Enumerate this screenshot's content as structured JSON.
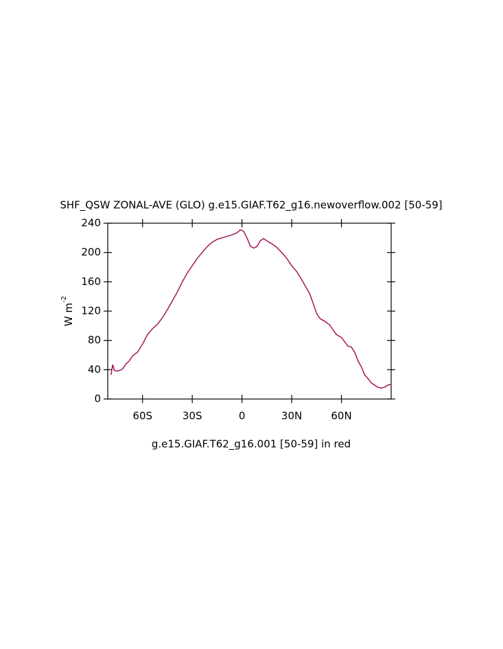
{
  "chart_data": {
    "type": "line",
    "title": "SHF_QSW ZONAL-AVE (GLO) g.e15.GIAF.T62_g16.newoverflow.002 [50-59]",
    "y_label": "W m",
    "y_label_exponent": "-2",
    "x_label": "g.e15.GIAF.T62_g16.001 [50-59] in red",
    "color": "#a3145c",
    "xlim": [
      -81,
      90
    ],
    "ylim": [
      0,
      240
    ],
    "xticks": [
      {
        "value": -60,
        "label": "60S"
      },
      {
        "value": -30,
        "label": "30S"
      },
      0,
      {
        "value": 30,
        "label": "30N"
      },
      {
        "value": 60,
        "label": "60N"
      }
    ],
    "yticks": [
      0,
      40,
      80,
      120,
      160,
      200,
      240
    ],
    "x": [
      -79,
      -78,
      -77,
      -75,
      -72,
      -70,
      -68,
      -66,
      -63,
      -60,
      -57,
      -54,
      -51,
      -48,
      -45,
      -42,
      -39,
      -36,
      -33,
      -30,
      -27,
      -24,
      -21,
      -18,
      -15,
      -12,
      -9,
      -6,
      -3,
      -1,
      1,
      3,
      5,
      7,
      9,
      11,
      13,
      15,
      18,
      21,
      24,
      27,
      30,
      33,
      36,
      39,
      41,
      43,
      45,
      47,
      50,
      53,
      55,
      57,
      60,
      62,
      64,
      66,
      68,
      70,
      72,
      74,
      76,
      78,
      80,
      82,
      84,
      86,
      88,
      90
    ],
    "values": [
      33,
      47,
      39,
      38,
      41,
      48,
      52,
      59,
      64,
      75,
      88,
      96,
      102,
      111,
      122,
      134,
      146,
      160,
      172,
      182,
      192,
      200,
      208,
      214,
      218,
      220,
      222,
      224,
      227,
      231,
      229,
      220,
      209,
      206,
      208,
      216,
      219,
      216,
      212,
      207,
      200,
      192,
      182,
      174,
      163,
      151,
      143,
      130,
      117,
      110,
      106,
      101,
      94,
      88,
      84,
      78,
      72,
      71,
      64,
      52,
      44,
      33,
      28,
      22,
      19,
      16,
      15,
      16,
      19,
      20
    ]
  }
}
